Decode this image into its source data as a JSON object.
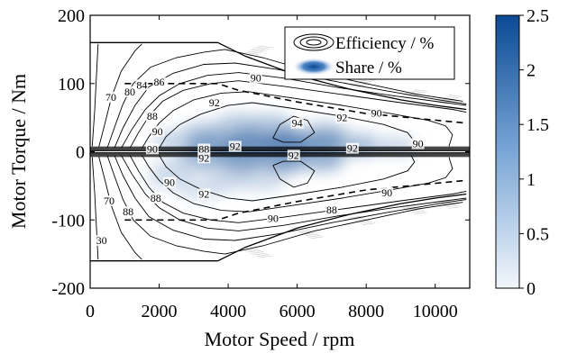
{
  "chart_data": {
    "type": "contour",
    "xlabel": "Motor Speed / rpm",
    "ylabel": "Motor Torque / Nm",
    "xlim": [
      0,
      11000
    ],
    "ylim": [
      -200,
      200
    ],
    "x_ticks": [
      0,
      2000,
      4000,
      6000,
      8000,
      10000
    ],
    "x_tick_labels": [
      "0",
      "2000",
      "4000",
      "6000",
      "8000",
      "10000"
    ],
    "y_ticks": [
      -200,
      -100,
      0,
      100,
      200
    ],
    "y_tick_labels": [
      "-200",
      "-100",
      "0",
      "100",
      "200"
    ],
    "legend": {
      "position": "top-right",
      "entries": [
        {
          "label": "Efficiency / %",
          "marker": "contour-rings"
        },
        {
          "label": "Share / %",
          "marker": "blue-blob"
        }
      ]
    },
    "colorbar": {
      "range": [
        0,
        2.5
      ],
      "ticks": [
        0,
        0.5,
        1,
        1.5,
        2,
        2.5
      ],
      "tick_labels": [
        "0",
        "0.5",
        "1",
        "1.5",
        "2",
        "2.5"
      ],
      "color_low": "#f2f6fb",
      "color_high": "#0b4a94"
    },
    "max_torque_envelope": [
      [
        0,
        160
      ],
      [
        3700,
        160
      ],
      [
        4500,
        140
      ],
      [
        6000,
        112
      ],
      [
        7500,
        92
      ],
      [
        9000,
        76
      ],
      [
        10000,
        68
      ],
      [
        10900,
        62
      ]
    ],
    "rated_torque_dashed": [
      [
        1000,
        100
      ],
      [
        3700,
        100
      ],
      [
        4300,
        90
      ],
      [
        6000,
        73
      ],
      [
        8000,
        56
      ],
      [
        10900,
        42
      ]
    ],
    "efficiency_contours": [
      {
        "level": "30",
        "label_at": [
          150,
          -135
        ],
        "points": [
          [
            60,
            8
          ],
          [
            130,
            60
          ],
          [
            230,
            158
          ]
        ]
      },
      {
        "level": "70",
        "label_at": [
          550,
          -80
        ],
        "points": [
          [
            250,
            7
          ],
          [
            420,
            40
          ],
          [
            620,
            80
          ],
          [
            900,
            118
          ],
          [
            1300,
            148
          ],
          [
            1500,
            158
          ]
        ]
      },
      {
        "level": "80",
        "label_at": [
          1000,
          105
        ],
        "points": [
          [
            500,
            6
          ],
          [
            700,
            35
          ],
          [
            950,
            70
          ],
          [
            1250,
            100
          ],
          [
            1750,
            124
          ],
          [
            2500,
            138
          ],
          [
            3300,
            146
          ],
          [
            3900,
            150
          ],
          [
            5000,
            138
          ],
          [
            6500,
            116
          ],
          [
            8000,
            100
          ],
          [
            9500,
            84
          ],
          [
            10800,
            74
          ]
        ]
      },
      {
        "level": "84",
        "label_at": [
          1500,
          110
        ],
        "points": [
          [
            700,
            5
          ],
          [
            950,
            35
          ],
          [
            1300,
            68
          ],
          [
            1700,
            95
          ],
          [
            2400,
            115
          ],
          [
            3300,
            128
          ],
          [
            4200,
            130
          ],
          [
            5500,
            120
          ],
          [
            7000,
            104
          ],
          [
            8500,
            90
          ],
          [
            10000,
            77
          ],
          [
            10900,
            70
          ]
        ]
      },
      {
        "level": "86",
        "label_at": [
          1950,
          108
        ],
        "points": [
          [
            900,
            5
          ],
          [
            1200,
            32
          ],
          [
            1600,
            62
          ],
          [
            2000,
            82
          ],
          [
            2600,
            100
          ],
          [
            3400,
            112
          ],
          [
            4300,
            116
          ],
          [
            5600,
            108
          ],
          [
            7200,
            94
          ],
          [
            8800,
            82
          ],
          [
            10300,
            72
          ],
          [
            10900,
            68
          ]
        ]
      },
      {
        "level": "88",
        "label_at": [
          1800,
          65
        ],
        "points": [
          [
            1150,
            5
          ],
          [
            1400,
            28
          ],
          [
            1700,
            52
          ],
          [
            2100,
            74
          ],
          [
            2700,
            90
          ],
          [
            3500,
            100
          ],
          [
            4300,
            104
          ],
          [
            5600,
            96
          ],
          [
            7300,
            84
          ],
          [
            9000,
            72
          ],
          [
            10500,
            62
          ],
          [
            10900,
            58
          ]
        ]
      },
      {
        "level": "90",
        "label_at": [
          2000,
          38
        ],
        "points": [
          [
            1500,
            5
          ],
          [
            1700,
            22
          ],
          [
            2000,
            42
          ],
          [
            2400,
            60
          ],
          [
            3000,
            76
          ],
          [
            3800,
            86
          ],
          [
            4600,
            88
          ],
          [
            5700,
            80
          ],
          [
            7300,
            68
          ],
          [
            8700,
            56
          ],
          [
            9800,
            46
          ],
          [
            10300,
            38
          ],
          [
            10500,
            25
          ],
          [
            10400,
            8
          ]
        ]
      },
      {
        "level": "92",
        "label_at": [
          3500,
          90
        ],
        "points": [
          [
            2000,
            5
          ],
          [
            2200,
            22
          ],
          [
            2600,
            40
          ],
          [
            3200,
            55
          ],
          [
            4000,
            68
          ],
          [
            4700,
            72
          ],
          [
            5800,
            64
          ],
          [
            7300,
            52
          ],
          [
            8500,
            40
          ],
          [
            9200,
            28
          ],
          [
            9400,
            15
          ],
          [
            9300,
            5
          ]
        ]
      },
      {
        "level": "94",
        "label_at": [
          5900,
          40
        ],
        "points": [
          [
            5300,
            20
          ],
          [
            5500,
            40
          ],
          [
            5900,
            52
          ],
          [
            6300,
            46
          ],
          [
            6500,
            28
          ],
          [
            6100,
            14
          ],
          [
            5600,
            14
          ],
          [
            5300,
            20
          ]
        ]
      }
    ],
    "contour_labels": [
      {
        "text": "70",
        "x": 600,
        "y": 80
      },
      {
        "text": "80",
        "x": 1150,
        "y": 88
      },
      {
        "text": "84",
        "x": 1500,
        "y": 98
      },
      {
        "text": "86",
        "x": 2000,
        "y": 102
      },
      {
        "text": "88",
        "x": 1800,
        "y": 52
      },
      {
        "text": "90",
        "x": 1950,
        "y": 30
      },
      {
        "text": "92",
        "x": 3600,
        "y": 72
      },
      {
        "text": "90",
        "x": 4800,
        "y": 108
      },
      {
        "text": "94",
        "x": 6000,
        "y": 42
      },
      {
        "text": "92",
        "x": 7300,
        "y": 50
      },
      {
        "text": "90",
        "x": 8300,
        "y": 57
      },
      {
        "text": "90",
        "x": 9500,
        "y": 12
      },
      {
        "text": "90",
        "x": 1800,
        "y": 4
      },
      {
        "text": "88",
        "x": 3300,
        "y": 4
      },
      {
        "text": "92",
        "x": 4200,
        "y": 8
      },
      {
        "text": "92",
        "x": 3300,
        "y": -9
      },
      {
        "text": "92",
        "x": 3300,
        "y": -62
      },
      {
        "text": "90",
        "x": 2300,
        "y": -45
      },
      {
        "text": "88",
        "x": 1900,
        "y": -68
      },
      {
        "text": "88",
        "x": 1100,
        "y": -88
      },
      {
        "text": "70",
        "x": 550,
        "y": -72
      },
      {
        "text": "30",
        "x": 330,
        "y": -130
      },
      {
        "text": "90",
        "x": 5300,
        "y": -98
      },
      {
        "text": "88",
        "x": 7000,
        "y": -85
      },
      {
        "text": "90",
        "x": 8600,
        "y": -60
      },
      {
        "text": "92",
        "x": 5900,
        "y": -5
      },
      {
        "text": "92",
        "x": 7600,
        "y": 5
      }
    ],
    "share_blobs": [
      {
        "x": 4300,
        "y": 40,
        "value": 0.5
      },
      {
        "x": 5200,
        "y": 40,
        "value": 0.5
      },
      {
        "x": 3300,
        "y": 30,
        "value": 0.4
      },
      {
        "x": 6800,
        "y": 30,
        "value": 0.4
      },
      {
        "x": 2500,
        "y": 15,
        "value": 0.4
      },
      {
        "x": 3500,
        "y": 12,
        "value": 0.9
      },
      {
        "x": 4600,
        "y": 14,
        "value": 1.1
      },
      {
        "x": 5700,
        "y": 14,
        "value": 1.2
      },
      {
        "x": 6800,
        "y": 12,
        "value": 1.0
      },
      {
        "x": 7800,
        "y": 10,
        "value": 0.6
      },
      {
        "x": 3200,
        "y": -12,
        "value": 0.7
      },
      {
        "x": 4400,
        "y": -14,
        "value": 0.9
      },
      {
        "x": 5600,
        "y": -14,
        "value": 0.9
      },
      {
        "x": 6700,
        "y": -12,
        "value": 0.7
      },
      {
        "x": 2500,
        "y": -25,
        "value": 0.3
      },
      {
        "x": 4000,
        "y": -42,
        "value": 0.35
      },
      {
        "x": 5000,
        "y": -42,
        "value": 0.3
      },
      {
        "x": 3200,
        "y": -55,
        "value": 0.25
      },
      {
        "x": 2300,
        "y": -40,
        "value": 0.25
      },
      {
        "x": 8800,
        "y": 8,
        "value": 0.3
      }
    ]
  }
}
